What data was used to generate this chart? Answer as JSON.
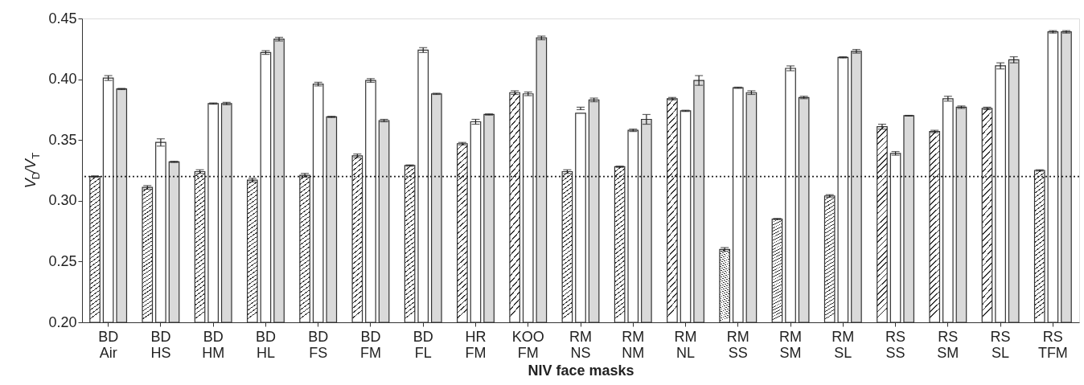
{
  "chart_data": {
    "type": "bar",
    "xlabel": "NIV face masks",
    "ylabel": "V$_{D}$/V$_{T}$",
    "categories": [
      "BD Air",
      "BD HS",
      "BD HM",
      "BD HL",
      "BD FS",
      "BD FM",
      "BD FL",
      "HR FM",
      "KOO FM",
      "RM NS",
      "RM NM",
      "RM NL",
      "RM SS",
      "RM SM",
      "RM SL",
      "RS SS",
      "RS SM",
      "RS SL",
      "RS TFM"
    ],
    "series": [
      {
        "color": "#333333",
        "values": [
          0.32,
          0.311,
          0.324,
          0.317,
          0.321,
          0.337,
          0.329,
          0.347,
          0.389,
          0.324,
          0.328,
          0.384,
          0.26,
          0.285,
          0.304,
          0.361,
          0.357,
          0.376,
          0.325
        ],
        "errors": [
          0.0005,
          0.0015,
          0.0015,
          0.0015,
          0.0015,
          0.0015,
          0.0005,
          0.001,
          0.0015,
          0.0015,
          0.0005,
          0.001,
          0.0015,
          0.0005,
          0.001,
          0.002,
          0.001,
          0.001,
          0.0005
        ]
      },
      {
        "color": "#ffffff",
        "values": [
          0.401,
          0.348,
          0.38,
          0.422,
          0.396,
          0.399,
          0.424,
          0.365,
          0.388,
          0.372,
          0.358,
          0.374,
          0.393,
          0.409,
          0.418,
          0.339,
          0.384,
          0.411,
          0.439
        ],
        "errors": [
          0.002,
          0.003,
          0.0005,
          0.0015,
          0.0015,
          0.0015,
          0.002,
          0.002,
          0.0015,
          [
            0.375,
            0.377
          ],
          0.001,
          0.0005,
          0.0005,
          0.002,
          0.0005,
          0.0015,
          0.002,
          0.0025,
          0.001
        ]
      },
      {
        "color": "#d9d9d9",
        "values": [
          0.392,
          0.332,
          0.38,
          0.433,
          0.369,
          0.366,
          0.388,
          0.371,
          0.434,
          0.383,
          0.367,
          0.399,
          0.389,
          0.385,
          0.423,
          0.37,
          0.377,
          0.416,
          0.439
        ],
        "errors": [
          0.0005,
          0.0005,
          0.001,
          0.0015,
          0.0005,
          0.001,
          0.0005,
          0.0005,
          0.0015,
          0.0015,
          0.004,
          0.004,
          0.0015,
          0.001,
          0.0015,
          0.0003,
          0.001,
          0.0025,
          0.001
        ]
      }
    ],
    "ylim": [
      0.2,
      0.45
    ],
    "yticks": [
      {
        "value": 0.2,
        "label": "0.20"
      },
      {
        "value": 0.25,
        "label": "0.25"
      },
      {
        "value": 0.3,
        "label": "0.30"
      },
      {
        "value": 0.35,
        "label": "0.35"
      },
      {
        "value": 0.4,
        "label": "0.40"
      },
      {
        "value": 0.45,
        "label": "0.45"
      }
    ],
    "ref_lines": [
      {
        "axis": "y",
        "value": 0.32,
        "line_style": "dotted",
        "color": "#222222"
      }
    ],
    "grid": false
  }
}
